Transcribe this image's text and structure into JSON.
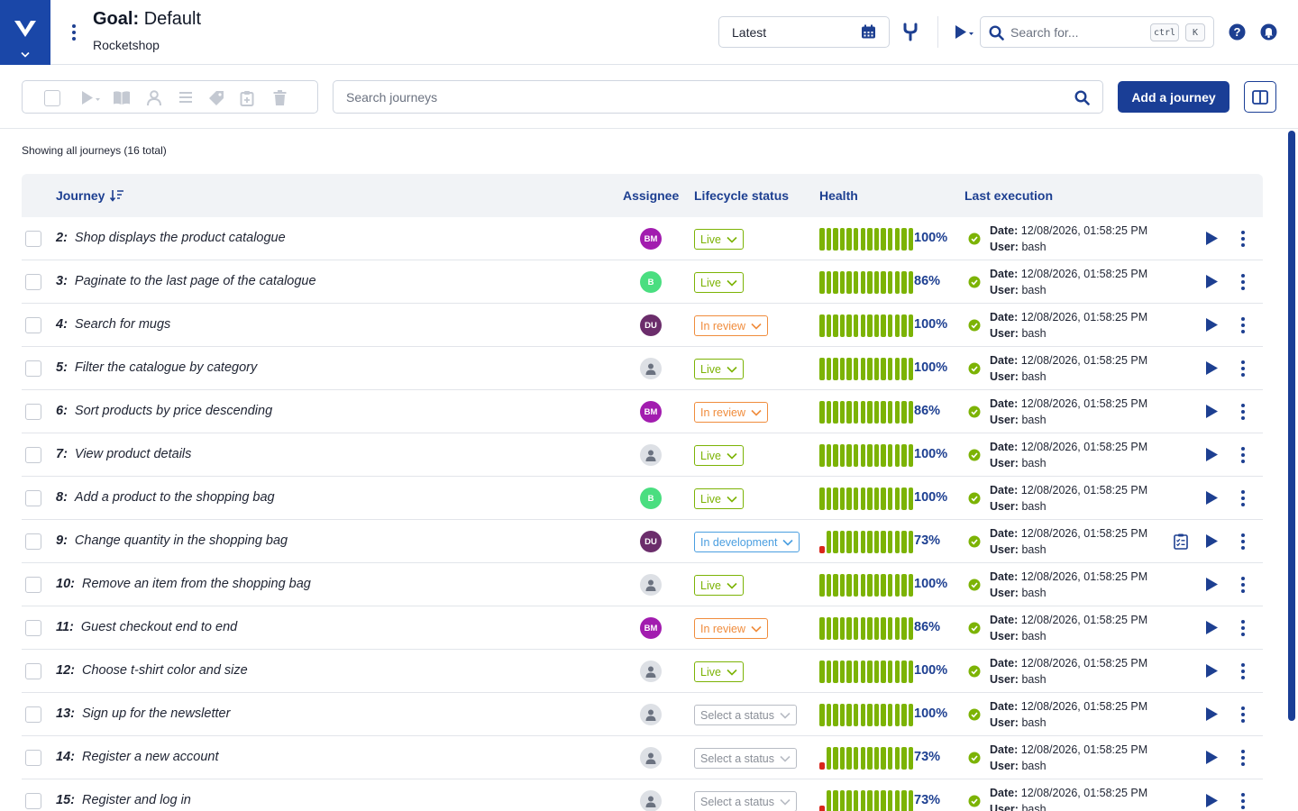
{
  "header": {
    "goal_label": "Goal:",
    "goal_name": "Default",
    "project": "Rocketshop",
    "date_value": "Latest",
    "search_placeholder": "Search for...",
    "shortcut_ctrl": "ctrl",
    "shortcut_key": "K"
  },
  "toolbar": {
    "search_placeholder": "Search journeys",
    "add_button": "Add a journey"
  },
  "summary": "Showing all journeys (16 total)",
  "columns": {
    "journey": "Journey",
    "assignee": "Assignee",
    "lifecycle": "Lifecycle status",
    "health": "Health",
    "last_execution": "Last execution"
  },
  "labels": {
    "date": "Date:",
    "user": "User:"
  },
  "colors": {
    "brand": "#1a47a8",
    "primary_button": "#1a3e96",
    "live": "#7cb305",
    "in_review": "#f08c3c",
    "in_development": "#4a9ee0",
    "select_status": "#b8bcc4",
    "health_green": "#7cb305",
    "health_red": "#d9261c",
    "success": "#7cb305"
  },
  "avatars": {
    "BM": "#a21caf",
    "B": "#4ade80",
    "DU": "#6b2d6b"
  },
  "journeys": [
    {
      "num": "2:",
      "name": "Shop displays the product catalogue",
      "assignee": "BM",
      "status": "Live",
      "status_type": "live",
      "health": "100%",
      "health_fail": false,
      "date": "12/08/2026, 01:58:25 PM",
      "user": "bash",
      "has_report": false
    },
    {
      "num": "3:",
      "name": "Paginate to the last page of the catalogue",
      "assignee": "B",
      "status": "Live",
      "status_type": "live",
      "health": "86%",
      "health_fail": false,
      "date": "12/08/2026, 01:58:25 PM",
      "user": "bash",
      "has_report": false
    },
    {
      "num": "4:",
      "name": "Search for mugs",
      "assignee": "DU",
      "status": "In review",
      "status_type": "review",
      "health": "100%",
      "health_fail": false,
      "date": "12/08/2026, 01:58:25 PM",
      "user": "bash",
      "has_report": false
    },
    {
      "num": "5:",
      "name": "Filter the catalogue by category",
      "assignee": "",
      "status": "Live",
      "status_type": "live",
      "health": "100%",
      "health_fail": false,
      "date": "12/08/2026, 01:58:25 PM",
      "user": "bash",
      "has_report": false
    },
    {
      "num": "6:",
      "name": "Sort products by price descending",
      "assignee": "BM",
      "status": "In review",
      "status_type": "review",
      "health": "86%",
      "health_fail": false,
      "date": "12/08/2026, 01:58:25 PM",
      "user": "bash",
      "has_report": false
    },
    {
      "num": "7:",
      "name": "View product details",
      "assignee": "",
      "status": "Live",
      "status_type": "live",
      "health": "100%",
      "health_fail": false,
      "date": "12/08/2026, 01:58:25 PM",
      "user": "bash",
      "has_report": false
    },
    {
      "num": "8:",
      "name": "Add a product to the shopping bag",
      "assignee": "B",
      "status": "Live",
      "status_type": "live",
      "health": "100%",
      "health_fail": false,
      "date": "12/08/2026, 01:58:25 PM",
      "user": "bash",
      "has_report": false
    },
    {
      "num": "9:",
      "name": "Change quantity in the shopping bag",
      "assignee": "DU",
      "status": "In development",
      "status_type": "dev",
      "health": "73%",
      "health_fail": true,
      "date": "12/08/2026, 01:58:25 PM",
      "user": "bash",
      "has_report": true
    },
    {
      "num": "10:",
      "name": "Remove an item from the shopping bag",
      "assignee": "",
      "status": "Live",
      "status_type": "live",
      "health": "100%",
      "health_fail": false,
      "date": "12/08/2026, 01:58:25 PM",
      "user": "bash",
      "has_report": false
    },
    {
      "num": "11:",
      "name": "Guest checkout end to end",
      "assignee": "BM",
      "status": "In review",
      "status_type": "review",
      "health": "86%",
      "health_fail": false,
      "date": "12/08/2026, 01:58:25 PM",
      "user": "bash",
      "has_report": false
    },
    {
      "num": "12:",
      "name": "Choose t-shirt color and size",
      "assignee": "",
      "status": "Live",
      "status_type": "live",
      "health": "100%",
      "health_fail": false,
      "date": "12/08/2026, 01:58:25 PM",
      "user": "bash",
      "has_report": false
    },
    {
      "num": "13:",
      "name": "Sign up for the newsletter",
      "assignee": "",
      "status": "Select a status",
      "status_type": "none",
      "health": "100%",
      "health_fail": false,
      "date": "12/08/2026, 01:58:25 PM",
      "user": "bash",
      "has_report": false
    },
    {
      "num": "14:",
      "name": "Register a new account",
      "assignee": "",
      "status": "Select a status",
      "status_type": "none",
      "health": "73%",
      "health_fail": true,
      "date": "12/08/2026, 01:58:25 PM",
      "user": "bash",
      "has_report": false
    },
    {
      "num": "15:",
      "name": "Register and log in",
      "assignee": "",
      "status": "Select a status",
      "status_type": "none",
      "health": "73%",
      "health_fail": true,
      "date": "12/08/2026, 01:58:25 PM",
      "user": "bash",
      "has_report": false
    }
  ]
}
